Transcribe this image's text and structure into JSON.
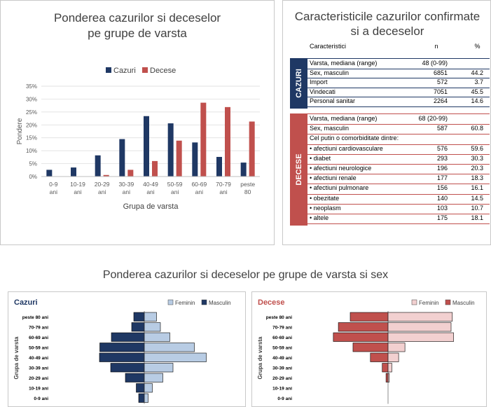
{
  "chart_data": [
    {
      "type": "bar",
      "title": "Ponderea cazurilor si deceselor\npe grupe de varsta",
      "xlabel": "Grupa de varsta",
      "ylabel": "Pondere",
      "ylim": [
        0,
        35
      ],
      "yticks": [
        "0%",
        "5%",
        "10%",
        "15%",
        "20%",
        "25%",
        "30%",
        "35%"
      ],
      "legend_position": "top",
      "categories": [
        "0-9 ani",
        "10-19 ani",
        "20-29 ani",
        "30-39 ani",
        "40-49 ani",
        "50-59 ani",
        "60-69 ani",
        "70-79 ani",
        "peste 80 ani"
      ],
      "series": [
        {
          "name": "Cazuri",
          "color": "#1f3864",
          "values": [
            2.6,
            3.5,
            8.2,
            14.5,
            23.4,
            20.6,
            13.2,
            7.6,
            5.4
          ]
        },
        {
          "name": "Decese",
          "color": "#c0504d",
          "values": [
            0,
            0,
            0.6,
            2.6,
            6.0,
            13.9,
            28.6,
            26.9,
            21.3
          ]
        }
      ]
    },
    {
      "type": "bar",
      "orientation": "horizontal-pyramid",
      "title": "Cazuri",
      "ylabel": "Grupa de varsta",
      "legend_position": "top-right",
      "categories": [
        "peste 80 ani",
        "70-79 ani",
        "60-69 ani",
        "50-59 ani",
        "40-49 ani",
        "30-39 ani",
        "20-29 ani",
        "10-19 ani",
        "0-9 ani"
      ],
      "series": [
        {
          "name": "Feminin",
          "color": "#b8cce4",
          "values": [
            3.5,
            4.6,
            7.3,
            14.3,
            17.7,
            8.2,
            5.3,
            2.3,
            1.1
          ]
        },
        {
          "name": "Masculin",
          "color": "#1f3864",
          "values": [
            3.0,
            3.6,
            9.4,
            12.7,
            12.8,
            9.6,
            5.4,
            2.3,
            1.6
          ]
        }
      ]
    },
    {
      "type": "bar",
      "orientation": "horizontal-pyramid",
      "title": "Decese",
      "ylabel": "Grupa de varsta",
      "legend_position": "top-right",
      "categories": [
        "peste 80 ani",
        "70-79 ani",
        "60-69 ani",
        "50-59 ani",
        "40-49 ani",
        "30-39 ani",
        "20-29 ani",
        "10-19 ani",
        "0-9 ani"
      ],
      "series": [
        {
          "name": "Feminin",
          "color": "#f2d0d0",
          "values": [
            25.5,
            25.0,
            26.0,
            6.7,
            4.2,
            1.5,
            0.5,
            0,
            0
          ]
        },
        {
          "name": "Masculin",
          "color": "#c0504d",
          "values": [
            15.0,
            19.7,
            21.7,
            13.9,
            7.0,
            2.3,
            0.8,
            0,
            0
          ]
        }
      ]
    }
  ],
  "table": {
    "title": "Caracteristicile cazurilor confirmate\nsi a deceselor",
    "headers": {
      "characteristic": "Caracteristici",
      "n": "n",
      "pct": "%"
    },
    "cazuri_label": "CAZURI",
    "decese_label": "DECESE",
    "cazuri_rows": [
      {
        "label": "Varsta, mediana (range)",
        "n": "48 (0-99)",
        "pct": ""
      },
      {
        "label": "Sex, masculin",
        "n": "6851",
        "pct": "44.2"
      },
      {
        "label": "Import",
        "n": "572",
        "pct": "3.7"
      },
      {
        "label": "Vindecati",
        "n": "7051",
        "pct": "45.5"
      },
      {
        "label": "Personal sanitar",
        "n": "2264",
        "pct": "14.6"
      }
    ],
    "decese_rows": [
      {
        "label": "Varsta, mediana (range)",
        "n": "68 (20-99)",
        "pct": ""
      },
      {
        "label": "Sex, masculin",
        "n": "587",
        "pct": "60.8"
      },
      {
        "label": "Cel putin o comorbiditate dintre:",
        "n": "",
        "pct": ""
      },
      {
        "label": "• afectiuni cardiovasculare",
        "n": "576",
        "pct": "59.6"
      },
      {
        "label": "• diabet",
        "n": "293",
        "pct": "30.3"
      },
      {
        "label": "• afectiuni neurologice",
        "n": "196",
        "pct": "20.3"
      },
      {
        "label": "• afectiuni renale",
        "n": "177",
        "pct": "18.3"
      },
      {
        "label": "• afectiuni pulmonare",
        "n": "156",
        "pct": "16.1"
      },
      {
        "label": "• obezitate",
        "n": "140",
        "pct": "14.5"
      },
      {
        "label": "• neoplasm",
        "n": "103",
        "pct": "10.7"
      },
      {
        "label": "• altele",
        "n": "175",
        "pct": "18.1"
      }
    ]
  },
  "section_title": "Ponderea cazurilor si deceselor pe grupe de varsta si sex"
}
